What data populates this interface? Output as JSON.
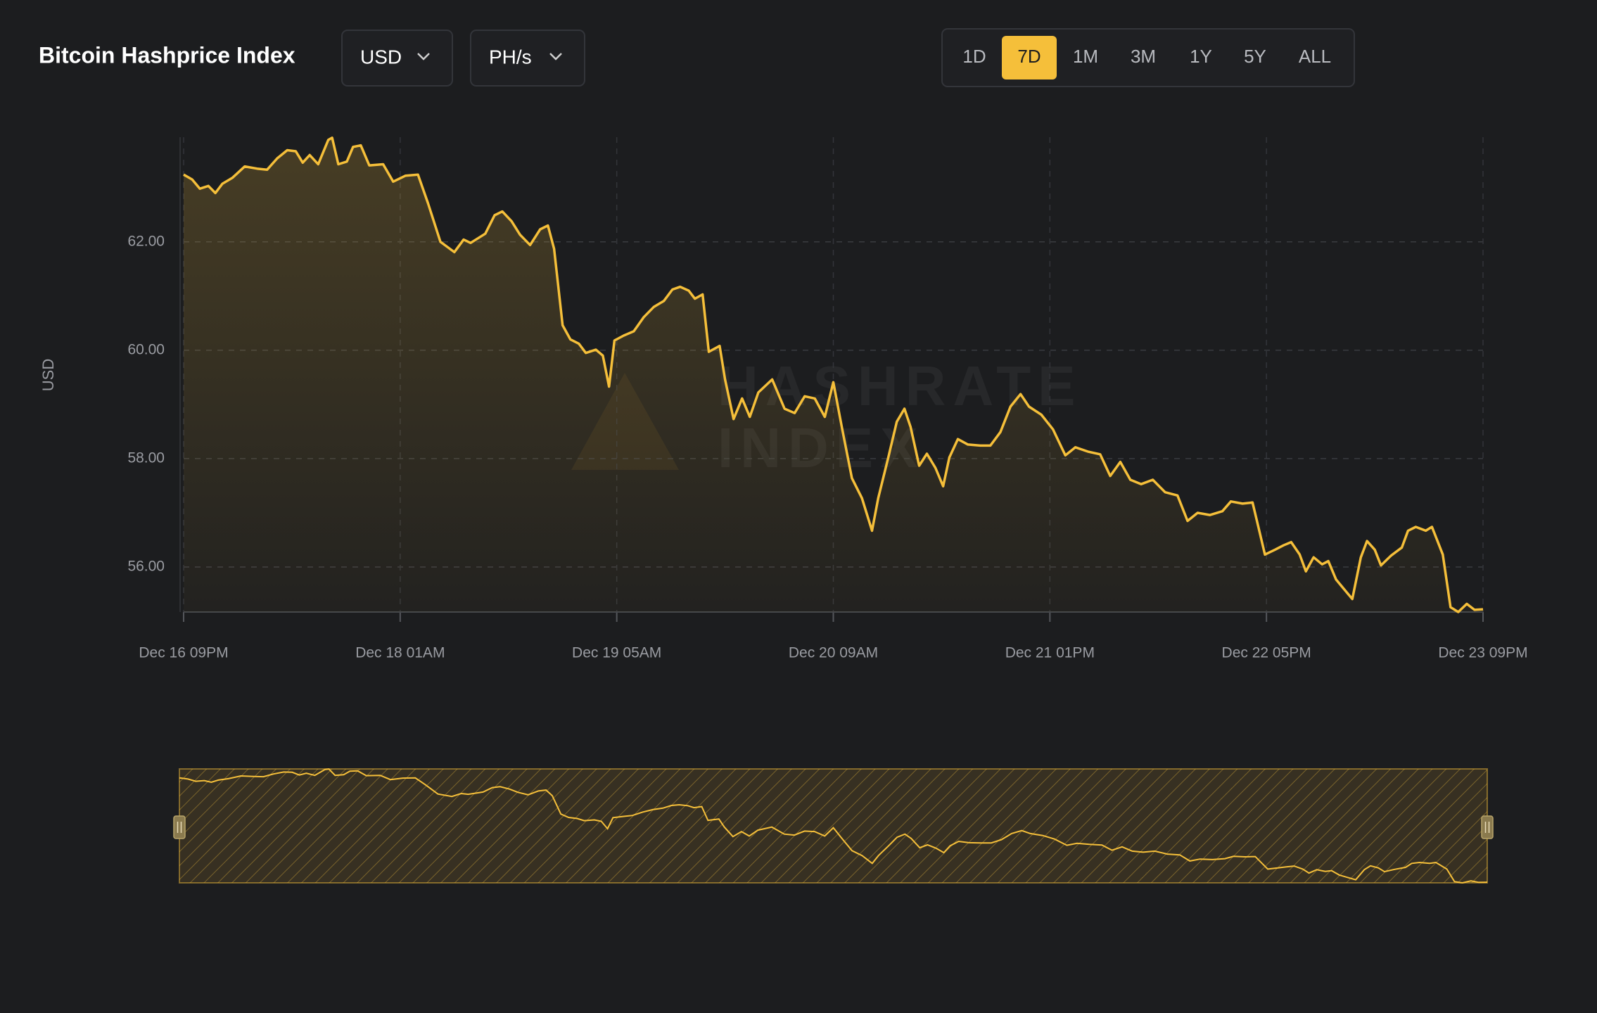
{
  "header": {
    "title": "Bitcoin Hashprice Index",
    "currency": "USD",
    "unit": "PH/s",
    "ranges": [
      "1D",
      "7D",
      "1M",
      "3M",
      "1Y",
      "5Y",
      "ALL"
    ],
    "active_range": "7D"
  },
  "watermark": [
    "HASHRATE",
    "INDEX"
  ],
  "chart_data": {
    "type": "area",
    "y_label": "USD",
    "color": "#f5bf3a",
    "grid": true,
    "xlim": [
      0,
      168
    ],
    "xticks": [
      {
        "value": 0,
        "label": "Dec 16 09PM"
      },
      {
        "value": 28,
        "label": "Dec 18 01AM"
      },
      {
        "value": 56,
        "label": "Dec 19 05AM"
      },
      {
        "value": 84,
        "label": "Dec 20 09AM"
      },
      {
        "value": 112,
        "label": "Dec 21 01PM"
      },
      {
        "value": 140,
        "label": "Dec 22 05PM"
      },
      {
        "value": 168,
        "label": "Dec 23 09PM"
      }
    ],
    "ylim": [
      55.17,
      63.93
    ],
    "yticks": [
      {
        "value": 56,
        "label": "56.00"
      },
      {
        "value": 58,
        "label": "58.00"
      },
      {
        "value": 60,
        "label": "60.00"
      },
      {
        "value": 62,
        "label": "62.00"
      }
    ],
    "x": [
      0,
      1.1,
      2.1,
      3.2,
      4.1,
      5.0,
      6.3,
      7.9,
      9.5,
      10.8,
      12.1,
      13.4,
      14.5,
      15.4,
      16.3,
      17.4,
      18.7,
      19.2,
      20.0,
      21.1,
      21.9,
      22.9,
      24.0,
      25.8,
      27.1,
      28.7,
      30.3,
      31.6,
      33.2,
      35.0,
      36.2,
      37.1,
      39.0,
      40.2,
      41.2,
      42.4,
      43.5,
      44.8,
      46.1,
      47.1,
      47.9,
      49.0,
      50.0,
      51.1,
      52.0,
      53.3,
      54.2,
      55.0,
      55.7,
      56.9,
      58.2,
      59.5,
      60.8,
      62.1,
      63.2,
      64.2,
      65.3,
      66.1,
      67.1,
      67.9,
      69.3,
      70.0,
      71.1,
      72.2,
      73.2,
      74.3,
      76.1,
      77.7,
      79.0,
      80.3,
      81.6,
      82.9,
      84.0,
      85.1,
      86.4,
      87.7,
      89.0,
      89.8,
      91.1,
      92.2,
      93.2,
      94.0,
      95.1,
      96.1,
      97.2,
      98.2,
      99.0,
      100.1,
      101.4,
      103.0,
      104.3,
      105.6,
      106.9,
      108.2,
      109.3,
      110.9,
      112.4,
      114.0,
      115.3,
      116.9,
      118.5,
      119.8,
      121.1,
      122.4,
      123.8,
      125.3,
      126.9,
      128.5,
      129.8,
      131.1,
      132.7,
      134.3,
      135.4,
      136.9,
      138.2,
      139.8,
      141.1,
      142.2,
      143.2,
      144.3,
      145.1,
      146.1,
      147.2,
      148.0,
      149.0,
      150.1,
      151.1,
      152.2,
      153.0,
      154.0,
      154.8,
      156.1,
      157.5,
      158.3,
      159.3,
      160.6,
      161.4,
      162.8,
      163.8,
      164.8,
      165.9,
      166.9,
      168.0
    ],
    "values": [
      63.24,
      63.15,
      62.98,
      63.03,
      62.9,
      63.07,
      63.18,
      63.39,
      63.35,
      63.33,
      63.54,
      63.69,
      63.67,
      63.46,
      63.6,
      63.43,
      63.88,
      63.92,
      63.43,
      63.48,
      63.75,
      63.78,
      63.41,
      63.43,
      63.11,
      63.22,
      63.24,
      62.71,
      62.0,
      61.81,
      62.04,
      61.98,
      62.15,
      62.49,
      62.56,
      62.38,
      62.13,
      61.94,
      62.23,
      62.3,
      61.87,
      60.46,
      60.2,
      60.12,
      59.95,
      60.01,
      59.9,
      59.33,
      60.18,
      60.27,
      60.35,
      60.61,
      60.8,
      60.91,
      61.12,
      61.17,
      61.1,
      60.95,
      61.03,
      59.97,
      60.08,
      59.46,
      58.73,
      59.11,
      58.77,
      59.22,
      59.46,
      58.92,
      58.84,
      59.15,
      59.11,
      58.77,
      59.41,
      58.58,
      57.64,
      57.27,
      56.67,
      57.27,
      58.02,
      58.68,
      58.92,
      58.58,
      57.87,
      58.09,
      57.83,
      57.49,
      58.02,
      58.36,
      58.26,
      58.24,
      58.24,
      58.49,
      58.96,
      59.19,
      58.96,
      58.81,
      58.54,
      58.06,
      58.21,
      58.13,
      58.08,
      57.68,
      57.94,
      57.61,
      57.53,
      57.61,
      57.38,
      57.32,
      56.85,
      57.0,
      56.96,
      57.03,
      57.21,
      57.17,
      57.19,
      56.23,
      56.32,
      56.4,
      56.46,
      56.23,
      55.92,
      56.18,
      56.05,
      56.11,
      55.77,
      55.58,
      55.41,
      56.18,
      56.48,
      56.32,
      56.03,
      56.21,
      56.36,
      56.67,
      56.74,
      56.67,
      56.74,
      56.23,
      55.26,
      55.17,
      55.32,
      55.21,
      55.22
    ]
  }
}
